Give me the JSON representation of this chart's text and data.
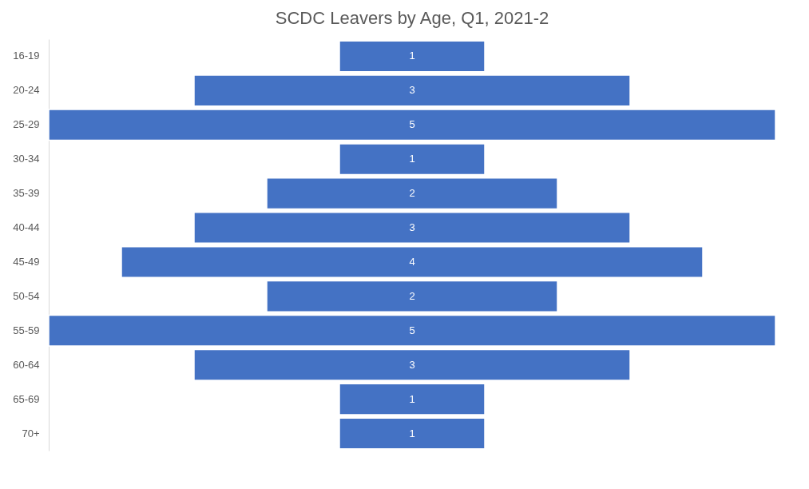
{
  "chart_data": {
    "type": "other",
    "title": "SCDC Leavers by Age, Q1, 2021-2",
    "categories": [
      "16-19",
      "20-24",
      "25-29",
      "30-34",
      "35-39",
      "40-44",
      "45-49",
      "50-54",
      "55-59",
      "60-64",
      "65-69",
      "70+"
    ],
    "values": [
      1,
      3,
      5,
      1,
      2,
      3,
      4,
      2,
      5,
      3,
      1,
      1
    ],
    "color": "#4472c4",
    "data_labels": true
  }
}
